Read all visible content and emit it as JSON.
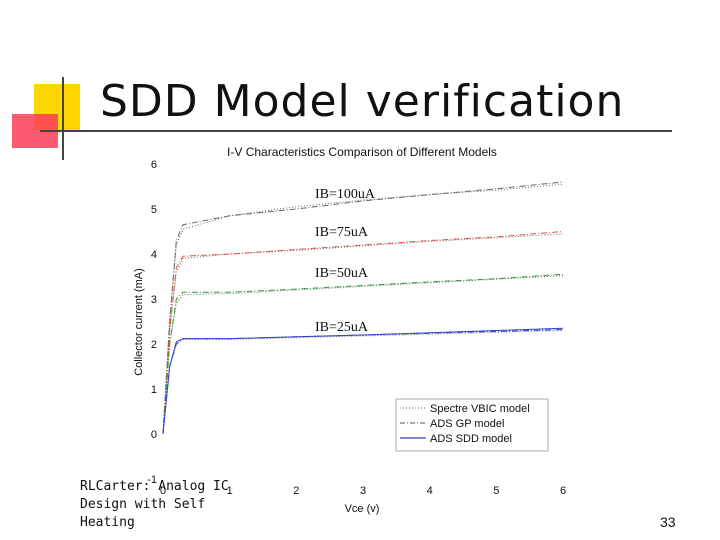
{
  "slide": {
    "title": "SDD Model verification",
    "footer": "RLCarter: Analog IC Design with Self Heating",
    "page_number": "33"
  },
  "colors": {
    "vbic": "#666666",
    "gp": "#e8533c",
    "gp_green": "#2e9e2e",
    "sdd": "#3344cc",
    "accent_yellow": "#ffd700",
    "accent_red": "#ff3b5a"
  },
  "chart_data": {
    "type": "line",
    "title": "I-V Characteristics Comparison of Different Models",
    "xlabel": "Vce (v)",
    "ylabel": "Collector current (mA)",
    "xlim": [
      0,
      6
    ],
    "ylim": [
      -1,
      6
    ],
    "xticks": [
      "0",
      "1",
      "2",
      "3",
      "4",
      "5",
      "6"
    ],
    "yticks": [
      "-1",
      "0",
      "1",
      "2",
      "3",
      "4",
      "5",
      "6"
    ],
    "grid": false,
    "legend": "bottom-right",
    "legend_entries": [
      "Spectre VBIC model",
      "ADS GP model",
      "ADS SDD model"
    ],
    "annotations": [
      "IB=100uA",
      "IB=75uA",
      "IB=50uA",
      "IB=25uA"
    ],
    "curves": [
      {
        "ib": "100uA",
        "model": "Spectre VBIC model",
        "x": [
          0,
          0.1,
          0.2,
          0.3,
          1,
          2,
          3,
          4,
          5,
          6
        ],
        "y": [
          0,
          2.5,
          4.2,
          4.55,
          4.85,
          5.05,
          5.2,
          5.32,
          5.42,
          5.55
        ]
      },
      {
        "ib": "100uA",
        "model": "ADS GP model",
        "x": [
          0,
          0.1,
          0.2,
          0.3,
          1,
          2,
          3,
          4,
          5,
          6
        ],
        "y": [
          0,
          2.5,
          4.3,
          4.65,
          4.85,
          5.0,
          5.18,
          5.32,
          5.45,
          5.6
        ]
      },
      {
        "ib": "75uA",
        "model": "Spectre VBIC model",
        "x": [
          0,
          0.1,
          0.2,
          0.3,
          1,
          2,
          3,
          4,
          5,
          6
        ],
        "y": [
          0,
          2.3,
          3.6,
          3.9,
          4.0,
          4.08,
          4.18,
          4.28,
          4.36,
          4.45
        ]
      },
      {
        "ib": "75uA",
        "model": "ADS GP model",
        "x": [
          0,
          0.1,
          0.2,
          0.3,
          1,
          2,
          3,
          4,
          5,
          6
        ],
        "y": [
          0,
          2.3,
          3.7,
          3.95,
          4.0,
          4.1,
          4.2,
          4.3,
          4.38,
          4.5
        ]
      },
      {
        "ib": "50uA",
        "model": "Spectre VBIC model",
        "x": [
          0,
          0.1,
          0.2,
          0.3,
          1,
          2,
          3,
          4,
          5,
          6
        ],
        "y": [
          0,
          2.0,
          2.9,
          3.1,
          3.12,
          3.2,
          3.28,
          3.36,
          3.44,
          3.52
        ]
      },
      {
        "ib": "50uA",
        "model": "ADS GP model",
        "x": [
          0,
          0.1,
          0.2,
          0.3,
          1,
          2,
          3,
          4,
          5,
          6
        ],
        "y": [
          0,
          2.0,
          3.0,
          3.15,
          3.15,
          3.22,
          3.3,
          3.38,
          3.45,
          3.55
        ]
      },
      {
        "ib": "25uA",
        "model": "Spectre VBIC model",
        "x": [
          0,
          0.1,
          0.2,
          0.3,
          1,
          2,
          3,
          4,
          5,
          6
        ],
        "y": [
          0,
          1.5,
          2.0,
          2.1,
          2.1,
          2.14,
          2.18,
          2.22,
          2.26,
          2.3
        ]
      },
      {
        "ib": "25uA",
        "model": "ADS GP model",
        "x": [
          0,
          0.1,
          0.2,
          0.3,
          1,
          2,
          3,
          4,
          5,
          6
        ],
        "y": [
          0,
          1.5,
          2.0,
          2.12,
          2.12,
          2.16,
          2.2,
          2.24,
          2.28,
          2.32
        ]
      },
      {
        "ib": "25uA",
        "model": "ADS SDD model",
        "x": [
          0,
          0.1,
          0.2,
          0.3,
          1,
          2,
          3,
          4,
          5,
          6
        ],
        "y": [
          0,
          1.5,
          2.05,
          2.12,
          2.12,
          2.16,
          2.2,
          2.25,
          2.3,
          2.35
        ]
      }
    ]
  }
}
